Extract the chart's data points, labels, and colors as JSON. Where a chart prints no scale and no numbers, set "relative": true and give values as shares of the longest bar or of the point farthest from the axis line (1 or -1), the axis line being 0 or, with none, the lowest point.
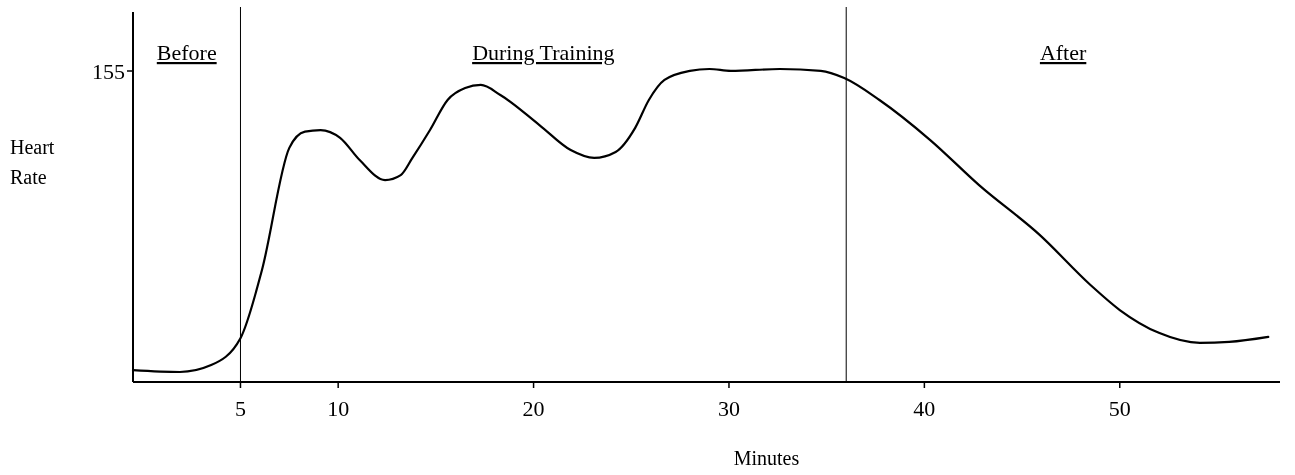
{
  "chart_data": {
    "type": "line",
    "relative": true,
    "xlabel": "Minutes",
    "ylabel": "Heart Rate",
    "xlim": [
      -0.5,
      58.2
    ],
    "xticks": [
      5,
      10,
      20,
      30,
      40,
      50
    ],
    "x": [
      -0.5,
      1.9,
      3.5,
      5,
      6.1,
      7.5,
      8.3,
      9.1,
      10.1,
      11.1,
      12.4,
      13.2,
      13.8,
      14.7,
      15.6,
      16.5,
      17.3,
      18.3,
      20.3,
      21.9,
      23.1,
      24.2,
      25.2,
      25.9,
      26.7,
      28,
      29,
      30.1,
      32.6,
      34.7,
      35.9,
      37.7,
      40.3,
      42.8,
      45.9,
      48.5,
      50,
      52,
      54.1,
      55.6,
      57.6
    ],
    "series": [
      {
        "color": "#000000",
        "values": [
          0.038,
          0.032,
          0.054,
          0.14,
          0.358,
          0.748,
          0.8,
          0.805,
          0.78,
          0.709,
          0.645,
          0.661,
          0.716,
          0.805,
          0.901,
          0.939,
          0.949,
          0.917,
          0.821,
          0.741,
          0.716,
          0.735,
          0.812,
          0.901,
          0.965,
          0.994,
          1,
          0.994,
          1,
          0.994,
          0.971,
          0.901,
          0.773,
          0.629,
          0.47,
          0.31,
          0.23,
          0.157,
          0.125,
          0.128,
          0.144
        ]
      }
    ],
    "ref_lines": [
      {
        "axis": "x",
        "value": 5
      },
      {
        "axis": "x",
        "value": 36
      }
    ],
    "annotations": [
      "155",
      "Before",
      "During Training",
      "After"
    ]
  }
}
